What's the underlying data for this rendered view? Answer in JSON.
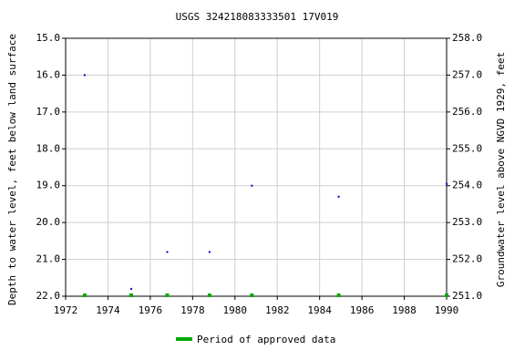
{
  "chart_data": {
    "type": "scatter",
    "title": "USGS 324218083333501 17V019",
    "ylabel": "Depth to water level, feet below land surface",
    "y2label": "Groundwater level above NGVD 1929, feet",
    "x": [
      1972.9,
      1975.1,
      1976.8,
      1978.8,
      1980.8,
      1984.9,
      1990.0
    ],
    "series": [
      {
        "color": "#0000cc",
        "values": [
          16.0,
          21.8,
          20.8,
          20.8,
          19.0,
          19.3,
          18.95
        ]
      }
    ],
    "approved_periods": {
      "name": "Period of approved data",
      "color": "#00aa00",
      "x": [
        1972.9,
        1975.1,
        1976.8,
        1978.8,
        1980.8,
        1984.9,
        1990.0
      ]
    },
    "xlim": [
      1972,
      1990
    ],
    "xticks": [
      1972,
      1974,
      1976,
      1978,
      1980,
      1982,
      1984,
      1986,
      1988,
      1990
    ],
    "ylim": [
      22,
      15
    ],
    "yticks": [
      {
        "value": 15,
        "label": "15.0"
      },
      {
        "value": 16,
        "label": "16.0"
      },
      {
        "value": 17,
        "label": "17.0"
      },
      {
        "value": 18,
        "label": "18.0"
      },
      {
        "value": 19,
        "label": "19.0"
      },
      {
        "value": 20,
        "label": "20.0"
      },
      {
        "value": 21,
        "label": "21.0"
      },
      {
        "value": 22,
        "label": "22.0"
      }
    ],
    "y2lim": [
      251,
      258
    ],
    "y2ticks": [
      {
        "value": 258,
        "label": "258.0"
      },
      {
        "value": 257,
        "label": "257.0"
      },
      {
        "value": 256,
        "label": "256.0"
      },
      {
        "value": 255,
        "label": "255.0"
      },
      {
        "value": 254,
        "label": "254.0"
      },
      {
        "value": 253,
        "label": "253.0"
      },
      {
        "value": 252,
        "label": "252.0"
      },
      {
        "value": 251,
        "label": "251.0"
      }
    ],
    "grid": true
  }
}
